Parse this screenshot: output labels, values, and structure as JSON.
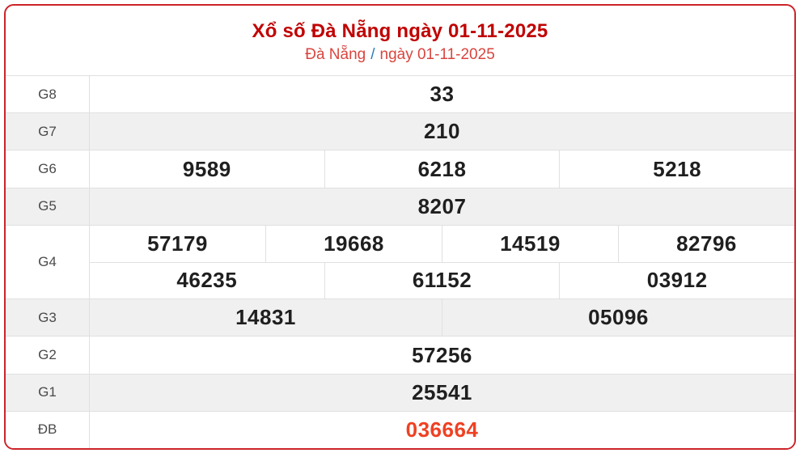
{
  "header": {
    "title": "Xổ số Đà Nẵng ngày 01-11-2025",
    "breadcrumb": {
      "region": "Đà Nẵng",
      "separator": "/",
      "date": "ngày 01-11-2025"
    }
  },
  "colors": {
    "title_red": "#c00000",
    "link_red": "#d9453f",
    "slash_blue": "#2b7bb9",
    "special_number_red": "#ef4123",
    "outer_border_red": "#cc2329",
    "alt_row_gray": "#f0f0f0"
  },
  "results_table": {
    "rows": [
      {
        "label": "G8",
        "lines": [
          [
            "33"
          ]
        ]
      },
      {
        "label": "G7",
        "lines": [
          [
            "210"
          ]
        ]
      },
      {
        "label": "G6",
        "lines": [
          [
            "9589",
            "6218",
            "5218"
          ]
        ]
      },
      {
        "label": "G5",
        "lines": [
          [
            "8207"
          ]
        ]
      },
      {
        "label": "G4",
        "lines": [
          [
            "57179",
            "19668",
            "14519",
            "82796"
          ],
          [
            "46235",
            "61152",
            "03912"
          ]
        ]
      },
      {
        "label": "G3",
        "lines": [
          [
            "14831",
            "05096"
          ]
        ]
      },
      {
        "label": "G2",
        "lines": [
          [
            "57256"
          ]
        ]
      },
      {
        "label": "G1",
        "lines": [
          [
            "25541"
          ]
        ]
      },
      {
        "label": "ĐB",
        "lines": [
          [
            "036664"
          ]
        ],
        "special": true
      }
    ]
  }
}
